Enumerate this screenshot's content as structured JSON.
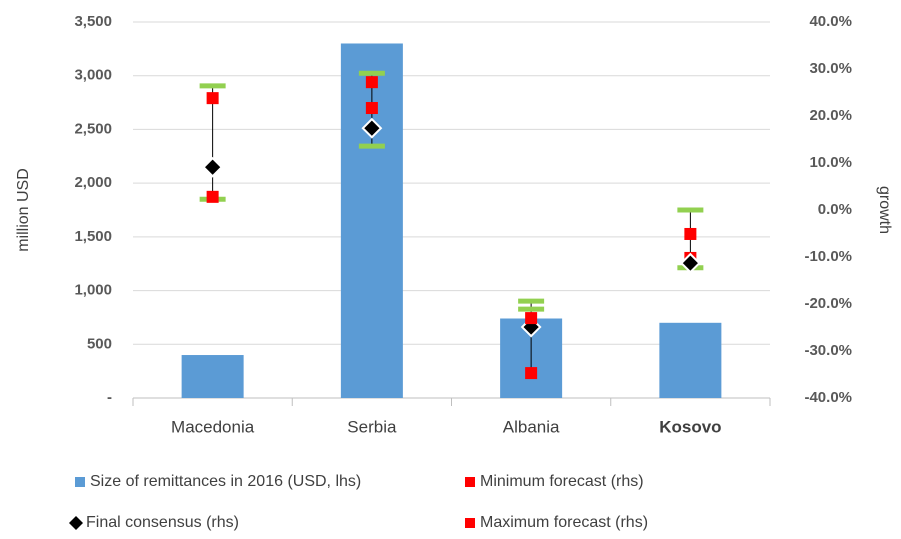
{
  "chart_data": {
    "type": "bar",
    "categories": [
      "Macedonia",
      "Serbia",
      "Albania",
      "Kosovo"
    ],
    "category_bold": [
      false,
      false,
      false,
      true
    ],
    "y_label": "million USD",
    "y2_label": "growth",
    "ylim": [
      0,
      3500
    ],
    "yticks": [
      {
        "value": 0,
        "label": "-"
      },
      500,
      {
        "value": 1000,
        "label": "1,000"
      },
      {
        "value": 1500,
        "label": "1,500"
      },
      {
        "value": 2000,
        "label": "2,000"
      },
      {
        "value": 2500,
        "label": "2,500"
      },
      {
        "value": 3000,
        "label": "3,000"
      },
      {
        "value": 3500,
        "label": "3,500"
      }
    ],
    "y2lim": [
      -40,
      40
    ],
    "y2ticks": [
      {
        "value": -40,
        "label": "-40.0%"
      },
      {
        "value": -30,
        "label": "-30.0%"
      },
      {
        "value": -20,
        "label": "-20.0%"
      },
      {
        "value": -10,
        "label": "-10.0%"
      },
      {
        "value": 0,
        "label": "0.0%"
      },
      {
        "value": 10,
        "label": "10.0%"
      },
      {
        "value": 20,
        "label": "20.0%"
      },
      {
        "value": 30,
        "label": "30.0%"
      },
      {
        "value": 40,
        "label": "40.0%"
      }
    ],
    "grid": true,
    "series": [
      {
        "name": "Size of remittances in 2016 (USD, lhs)",
        "color": "#5b9bd5",
        "marker": "bar",
        "axis": "y",
        "values": [
          400,
          3300,
          740,
          700
        ]
      },
      {
        "name": "Minimum forecast (rhs)",
        "color": "#ff0000",
        "marker": "square",
        "axis": "y2",
        "values": [
          2.8,
          21.7,
          -34.7,
          -10.2
        ]
      },
      {
        "name": "Final consensus (rhs)",
        "color": "#000000",
        "marker": "diamond",
        "axis": "y2",
        "values": [
          9.1,
          17.4,
          -24.9,
          -11.3
        ]
      },
      {
        "name": "Maximum forecast (rhs)",
        "color": "#ff0000",
        "marker": "square",
        "axis": "y2",
        "values": [
          23.8,
          27.2,
          -23.0,
          -5.1
        ]
      }
    ],
    "range": {
      "color": "#92d050",
      "axis": "y2",
      "low": [
        2.3,
        13.6,
        -21.1,
        -12.3
      ],
      "high": [
        26.4,
        29.1,
        -19.4,
        0.0
      ]
    }
  }
}
